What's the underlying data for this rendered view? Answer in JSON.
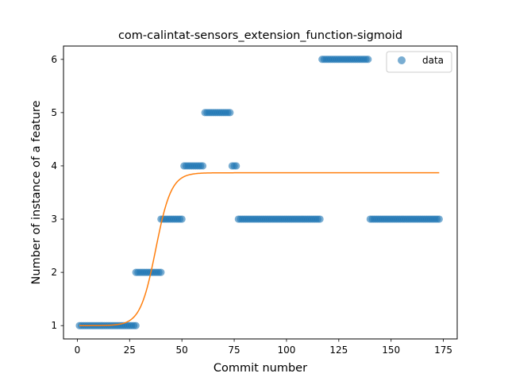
{
  "chart_data": {
    "type": "scatter",
    "title": "com-calintat-sensors_extension_function-sigmoid",
    "xlabel": "Commit number",
    "ylabel": "Number of instance of a feature",
    "xlim": [
      -6.6,
      181.6
    ],
    "ylim": [
      0.75,
      6.25
    ],
    "xticks": [
      0,
      25,
      50,
      75,
      100,
      125,
      150,
      175
    ],
    "yticks": [
      1,
      2,
      3,
      4,
      5,
      6
    ],
    "grid": false,
    "legend_position": "top-right",
    "colors": {
      "data": "#1f77b4",
      "fit": "#ff7f0e"
    },
    "series": [
      {
        "name": "data",
        "kind": "scatter",
        "segments": [
          {
            "x_from": 1,
            "x_to": 28,
            "y": 1
          },
          {
            "x_from": 28,
            "x_to": 40,
            "y": 2
          },
          {
            "x_from": 40,
            "x_to": 50,
            "y": 3
          },
          {
            "x_from": 51,
            "x_to": 60,
            "y": 4
          },
          {
            "x_from": 61,
            "x_to": 73,
            "y": 5
          },
          {
            "x_from": 74,
            "x_to": 76,
            "y": 4
          },
          {
            "x_from": 77,
            "x_to": 116,
            "y": 3
          },
          {
            "x_from": 117,
            "x_to": 139,
            "y": 6
          },
          {
            "x_from": 140,
            "x_to": 173,
            "y": 3
          }
        ]
      },
      {
        "kind": "line",
        "model": "sigmoid",
        "params": {
          "L": 2.87,
          "k": 0.27,
          "x0": 37.5,
          "b": 1.0
        },
        "x_range": [
          1,
          173
        ]
      }
    ]
  }
}
